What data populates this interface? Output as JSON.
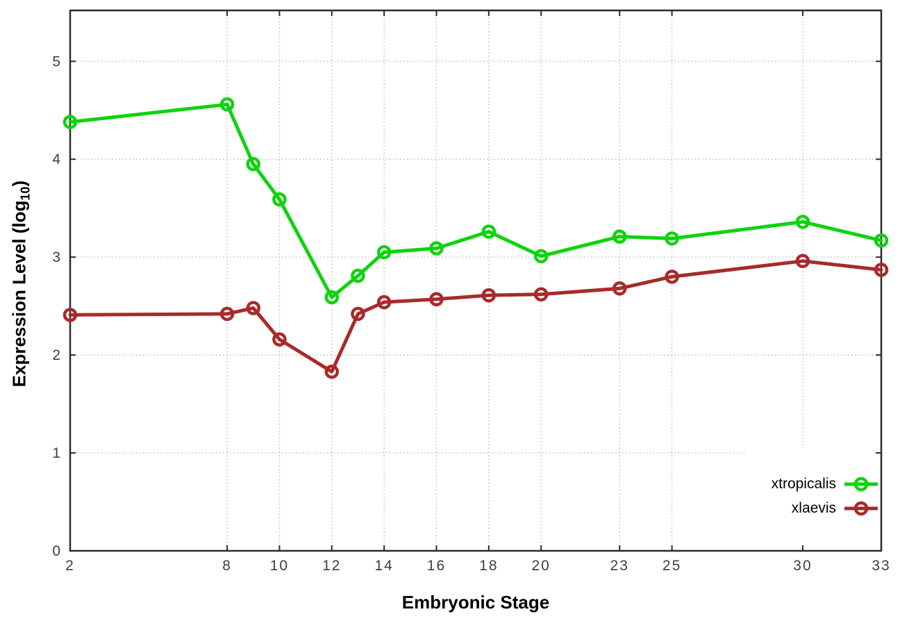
{
  "chart_data": {
    "type": "line",
    "title": "",
    "xlabel": "Embryonic Stage",
    "ylabel": "Expression Level (log10)",
    "ylabel_parts": {
      "main": "Expression Level (log",
      "sub": "10",
      "close": ")"
    },
    "x_ticks": [
      2,
      8,
      10,
      12,
      14,
      16,
      18,
      20,
      23,
      25,
      30,
      33
    ],
    "y_ticks": [
      0,
      1,
      2,
      3,
      4,
      5
    ],
    "xlim": [
      2,
      33
    ],
    "ylim": [
      0,
      5.52
    ],
    "grid": true,
    "legend_position": "bottom-right",
    "x": [
      2,
      8,
      9,
      10,
      12,
      13,
      14,
      16,
      18,
      20,
      23,
      25,
      30,
      33
    ],
    "series": [
      {
        "name": "xtropicalis",
        "color": "#0ed30e",
        "values": [
          4.38,
          4.56,
          3.95,
          3.59,
          2.59,
          2.81,
          3.05,
          3.09,
          3.26,
          3.01,
          3.21,
          3.19,
          3.36,
          3.17
        ]
      },
      {
        "name": "xlaevis",
        "color": "#a82a2a",
        "values": [
          2.41,
          2.42,
          2.48,
          2.16,
          1.83,
          2.42,
          2.54,
          2.57,
          2.61,
          2.62,
          2.68,
          2.8,
          2.96,
          2.87
        ]
      }
    ],
    "colors": {
      "background": "#ffffff",
      "axis": "#2a2a2a",
      "grid": "#bcbcbc",
      "tick_label": "#3f3f3f"
    }
  }
}
